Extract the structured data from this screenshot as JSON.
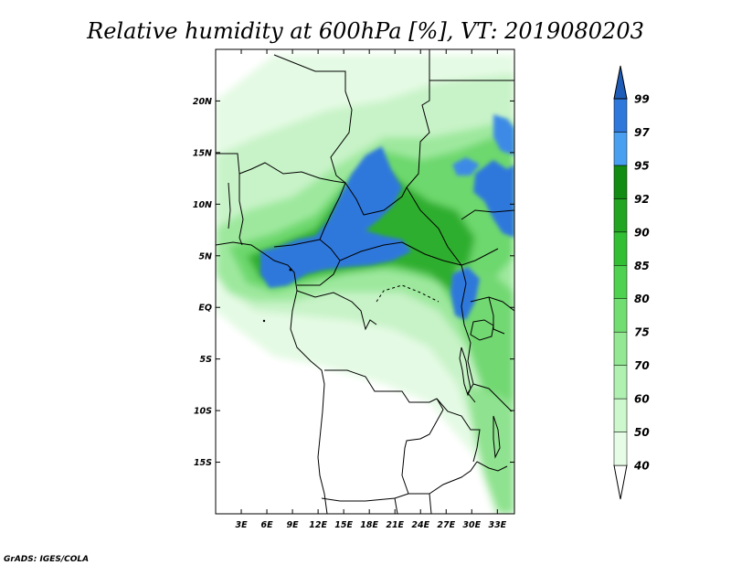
{
  "title": "Relative humidity at 600hPa [%], VT: 2019080203",
  "credit": "GrADS: IGES/COLA",
  "map": {
    "lon_range": [
      0,
      35
    ],
    "lat_range": [
      -20,
      25
    ],
    "lat_ticks": [
      {
        "value": 20,
        "label": "20N"
      },
      {
        "value": 15,
        "label": "15N"
      },
      {
        "value": 10,
        "label": "10N"
      },
      {
        "value": 5,
        "label": "5N"
      },
      {
        "value": 0,
        "label": "EQ"
      },
      {
        "value": -5,
        "label": "5S"
      },
      {
        "value": -10,
        "label": "10S"
      },
      {
        "value": -15,
        "label": "15S"
      }
    ],
    "lon_ticks": [
      {
        "value": 3,
        "label": "3E"
      },
      {
        "value": 6,
        "label": "6E"
      },
      {
        "value": 9,
        "label": "9E"
      },
      {
        "value": 12,
        "label": "12E"
      },
      {
        "value": 15,
        "label": "15E"
      },
      {
        "value": 18,
        "label": "18E"
      },
      {
        "value": 21,
        "label": "21E"
      },
      {
        "value": 24,
        "label": "24E"
      },
      {
        "value": 27,
        "label": "27E"
      },
      {
        "value": 30,
        "label": "30E"
      },
      {
        "value": 33,
        "label": "33E"
      }
    ]
  },
  "colorbar": {
    "labels": [
      "40",
      "50",
      "60",
      "70",
      "75",
      "80",
      "85",
      "90",
      "92",
      "95",
      "97",
      "99"
    ],
    "colors": [
      "#ffffff",
      "#e6fce6",
      "#cdf7cd",
      "#b0f0b0",
      "#94e894",
      "#72de72",
      "#4fd24f",
      "#33bf33",
      "#22a622",
      "#128c12",
      "#4aa0f0",
      "#2e78dc",
      "#1e5cb8"
    ]
  },
  "colors": {
    "green_light": "#dcf8dc",
    "green_mid": "#8fe58f",
    "green_dark": "#2fae2f",
    "blue": "#2e78dc",
    "blue_light": "#4aa0f0",
    "border": "#000000"
  }
}
